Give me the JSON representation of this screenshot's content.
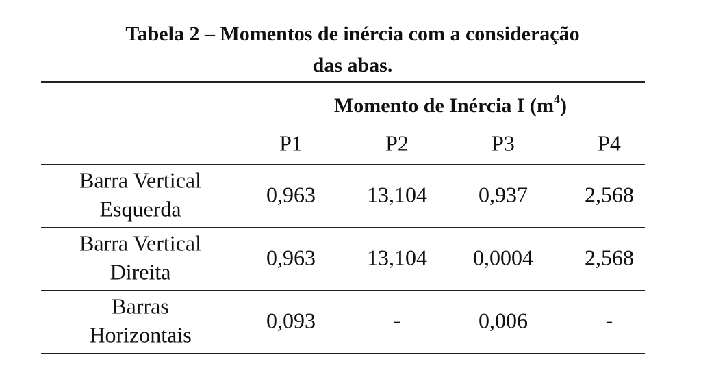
{
  "title_lines": [
    "Tabela 2 – Momentos de inércia com a consideração",
    "das abas."
  ],
  "table": {
    "group_header": {
      "text": "Momento de Inércia I (m",
      "superscript": "4",
      "suffix": ")"
    },
    "columns": [
      "P1",
      "P2",
      "P3",
      "P4"
    ],
    "rows": [
      {
        "label": [
          "Barra Vertical",
          "Esquerda"
        ],
        "cells": [
          "0,963",
          "13,104",
          "0,937",
          "2,568"
        ]
      },
      {
        "label": [
          "Barra Vertical",
          "Direita"
        ],
        "cells": [
          "0,963",
          "13,104",
          "0,0004",
          "2,568"
        ]
      },
      {
        "label": [
          "Barras",
          "Horizontais"
        ],
        "cells": [
          "0,093",
          "-",
          "0,006",
          "-"
        ]
      }
    ]
  }
}
